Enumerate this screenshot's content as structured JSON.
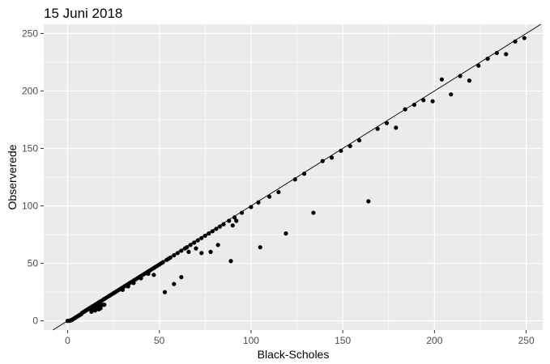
{
  "chart_data": {
    "type": "scatter",
    "title": "15 Juni 2018",
    "xlabel": "Black-Scholes",
    "ylabel": "Observerede",
    "xlim": [
      -13,
      259
    ],
    "ylim": [
      -8,
      258
    ],
    "x_ticks": [
      0,
      50,
      100,
      150,
      200,
      250
    ],
    "y_ticks": [
      0,
      50,
      100,
      150,
      200,
      250
    ],
    "x_tick_labels": [
      "0",
      "50",
      "100",
      "150",
      "200",
      "250"
    ],
    "y_tick_labels": [
      "0",
      "50",
      "100",
      "150",
      "200",
      "250"
    ],
    "grid": true,
    "background_color": "#ebebeb",
    "grid_color": "#ffffff",
    "point_color": "#000000",
    "reference_line": {
      "slope": 1,
      "intercept": 0
    },
    "points": [
      [
        0,
        0
      ],
      [
        1,
        0
      ],
      [
        1.5,
        0.5
      ],
      [
        2,
        0.5
      ],
      [
        2.5,
        1
      ],
      [
        3,
        1.5
      ],
      [
        3.5,
        2
      ],
      [
        4,
        2.5
      ],
      [
        4.5,
        3
      ],
      [
        5,
        3.5
      ],
      [
        5.5,
        4
      ],
      [
        6,
        4.5
      ],
      [
        6.5,
        5
      ],
      [
        7,
        5.5
      ],
      [
        7.5,
        6
      ],
      [
        8,
        7
      ],
      [
        8.5,
        7.5
      ],
      [
        9,
        8
      ],
      [
        9.5,
        8.5
      ],
      [
        10,
        9
      ],
      [
        10.5,
        9.5
      ],
      [
        11,
        10
      ],
      [
        11.5,
        10.5
      ],
      [
        12,
        11
      ],
      [
        12.5,
        11.5
      ],
      [
        13,
        12
      ],
      [
        13.5,
        12.5
      ],
      [
        14,
        13
      ],
      [
        15,
        14
      ],
      [
        16,
        15
      ],
      [
        17,
        16
      ],
      [
        18,
        17
      ],
      [
        19,
        18
      ],
      [
        20,
        19
      ],
      [
        21,
        20
      ],
      [
        14,
        10
      ],
      [
        15,
        11
      ],
      [
        16,
        12
      ],
      [
        17,
        13
      ],
      [
        18,
        14
      ],
      [
        19,
        14
      ],
      [
        17,
        10
      ],
      [
        18,
        11
      ],
      [
        15,
        9
      ],
      [
        13,
        8
      ],
      [
        20,
        14
      ],
      [
        22,
        21
      ],
      [
        23,
        22
      ],
      [
        24,
        23
      ],
      [
        25,
        24
      ],
      [
        26,
        25
      ],
      [
        27,
        26
      ],
      [
        28,
        27
      ],
      [
        29,
        28
      ],
      [
        30,
        29
      ],
      [
        31,
        30
      ],
      [
        32,
        31
      ],
      [
        33,
        32
      ],
      [
        34,
        33
      ],
      [
        35,
        34
      ],
      [
        36,
        35
      ],
      [
        37,
        36
      ],
      [
        38,
        37
      ],
      [
        39,
        38
      ],
      [
        40,
        39
      ],
      [
        41,
        40
      ],
      [
        42,
        41
      ],
      [
        43,
        42
      ],
      [
        44,
        43
      ],
      [
        45,
        44
      ],
      [
        46,
        45
      ],
      [
        47,
        46
      ],
      [
        48,
        47
      ],
      [
        49,
        48
      ],
      [
        50,
        49
      ],
      [
        51,
        50
      ],
      [
        52,
        51
      ],
      [
        54,
        53
      ],
      [
        55,
        54
      ],
      [
        56,
        55
      ],
      [
        58,
        57
      ],
      [
        60,
        59
      ],
      [
        62,
        61
      ],
      [
        64,
        63
      ],
      [
        65,
        64
      ],
      [
        67,
        66
      ],
      [
        69,
        68
      ],
      [
        71,
        70
      ],
      [
        73,
        72
      ],
      [
        75,
        74
      ],
      [
        77,
        76
      ],
      [
        79,
        78
      ],
      [
        81,
        80
      ],
      [
        83,
        82
      ],
      [
        85,
        84
      ],
      [
        88,
        87
      ],
      [
        91,
        90
      ],
      [
        95,
        94
      ],
      [
        100,
        99
      ],
      [
        104,
        103
      ],
      [
        30,
        27
      ],
      [
        33,
        30
      ],
      [
        36,
        33
      ],
      [
        40,
        37
      ],
      [
        44,
        41
      ],
      [
        47,
        40
      ],
      [
        53,
        25
      ],
      [
        58,
        32
      ],
      [
        62,
        38
      ],
      [
        66,
        60
      ],
      [
        70,
        63
      ],
      [
        73,
        59
      ],
      [
        78,
        60
      ],
      [
        82,
        66
      ],
      [
        89,
        52
      ],
      [
        90,
        83
      ],
      [
        92,
        87
      ],
      [
        105,
        64
      ],
      [
        119,
        76
      ],
      [
        134,
        94
      ],
      [
        164,
        104
      ],
      [
        110,
        108
      ],
      [
        115,
        112
      ],
      [
        124,
        123
      ],
      [
        129,
        128
      ],
      [
        139,
        139
      ],
      [
        144,
        142
      ],
      [
        149,
        148
      ],
      [
        154,
        152
      ],
      [
        159,
        157
      ],
      [
        169,
        167
      ],
      [
        174,
        172
      ],
      [
        179,
        168
      ],
      [
        184,
        184
      ],
      [
        189,
        188
      ],
      [
        194,
        192
      ],
      [
        199,
        191
      ],
      [
        204,
        210
      ],
      [
        209,
        197
      ],
      [
        214,
        213
      ],
      [
        219,
        209
      ],
      [
        224,
        222
      ],
      [
        229,
        228
      ],
      [
        234,
        233
      ],
      [
        239,
        232
      ],
      [
        244,
        243
      ],
      [
        249,
        246
      ]
    ]
  }
}
